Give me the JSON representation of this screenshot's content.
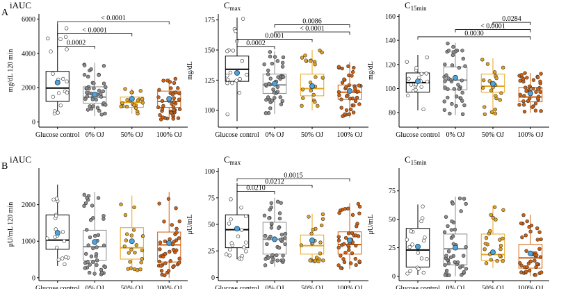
{
  "figure": {
    "row_labels": [
      "A",
      "B"
    ]
  },
  "colors": {
    "glucose": "#ffffff",
    "oj0": "#8c8c8c",
    "oj50": "#e8a21a",
    "oj100": "#d35f0c",
    "box_glucose": "#000000",
    "box_oj0": "#8c8c8c",
    "box_oj50": "#e8a21a",
    "box_oj100": "#d35f0c",
    "mean": "#4fa3d8"
  },
  "chart_data": [
    {
      "type": "box",
      "row": "A",
      "title": "iAUC",
      "title_sub": "",
      "ylabel": "mg/dL 120 min",
      "ylim": [
        -300,
        6300
      ],
      "yticks": [
        0,
        2000,
        4000,
        6000
      ],
      "categories": [
        "Glucose control",
        "0% OJ",
        "50% OJ",
        "100% OJ"
      ],
      "boxes": [
        {
          "q1": 1200,
          "median": 1980,
          "q3": 2950,
          "wlo": 450,
          "whi": 5700,
          "mean": 2300
        },
        {
          "q1": 1100,
          "median": 1450,
          "q3": 2050,
          "wlo": 350,
          "whi": 3450,
          "mean": 1600
        },
        {
          "q1": 850,
          "median": 1150,
          "q3": 1450,
          "wlo": 480,
          "whi": 1950,
          "mean": 1350
        },
        {
          "q1": 850,
          "median": 1200,
          "q3": 1800,
          "wlo": 150,
          "whi": 2550,
          "mean": 1350
        }
      ],
      "comparisons": [
        {
          "from": 0,
          "to": 1,
          "label": "0.0002",
          "y": 4420
        },
        {
          "from": 0,
          "to": 2,
          "label": "< 0.0001",
          "y": 5150
        },
        {
          "from": 0,
          "to": 3,
          "label": "< 0.0001",
          "y": 5850
        }
      ]
    },
    {
      "type": "box",
      "row": "A",
      "title": "C",
      "title_sub": "max",
      "ylabel": "mg/dL",
      "ylim": [
        86,
        180
      ],
      "yticks": [
        100,
        125,
        150,
        175
      ],
      "categories": [
        "Glucose control",
        "0% OJ",
        "50% OJ",
        "100% OJ"
      ],
      "boxes": [
        {
          "q1": 124,
          "median": 134,
          "q3": 145,
          "wlo": 91,
          "whi": 177,
          "mean": 131
        },
        {
          "q1": 114,
          "median": 121,
          "q3": 130,
          "wlo": 97,
          "whi": 149,
          "mean": 122
        },
        {
          "q1": 112,
          "median": 118,
          "q3": 130,
          "wlo": 100,
          "whi": 150,
          "mean": 120
        },
        {
          "q1": 109,
          "median": 115,
          "q3": 121,
          "wlo": 94,
          "whi": 140,
          "mean": 116
        }
      ],
      "comparisons": [
        {
          "from": 0,
          "to": 1,
          "label": "0.0002",
          "y": 153
        },
        {
          "from": 0,
          "to": 2,
          "label": "0.0001",
          "y": 159
        },
        {
          "from": 1,
          "to": 3,
          "label": "< 0.0001",
          "y": 165
        },
        {
          "from": 1,
          "to": 3,
          "label": "0.0086",
          "y": 171
        }
      ]
    },
    {
      "type": "box",
      "row": "A",
      "title": "C",
      "title_sub": "15min",
      "ylabel": "mg/dL",
      "ylim": [
        68,
        162
      ],
      "yticks": [
        80,
        100,
        120,
        140,
        160
      ],
      "categories": [
        "Glucose control",
        "0% OJ",
        "50% OJ",
        "100% OJ"
      ],
      "boxes": [
        {
          "q1": 97,
          "median": 105,
          "q3": 113,
          "wlo": 82,
          "whi": 128,
          "mean": 106
        },
        {
          "q1": 99,
          "median": 107,
          "q3": 118,
          "wlo": 78,
          "whi": 138,
          "mean": 109
        },
        {
          "q1": 97,
          "median": 102,
          "q3": 112,
          "wlo": 78,
          "whi": 125,
          "mean": 104
        },
        {
          "q1": 89,
          "median": 93,
          "q3": 101,
          "wlo": 80,
          "whi": 113,
          "mean": 96
        }
      ],
      "comparisons": [
        {
          "from": 0,
          "to": 3,
          "label": "0.0030",
          "y": 143
        },
        {
          "from": 1,
          "to": 3,
          "label": "< 0.0001",
          "y": 149
        },
        {
          "from": 2,
          "to": 3,
          "label": "0.0284",
          "y": 155
        }
      ]
    },
    {
      "type": "box",
      "row": "B",
      "title": "iAUC",
      "title_sub": "",
      "ylabel": "μU/mL 120 min",
      "ylim": [
        -80,
        3000
      ],
      "yticks": [
        0,
        1000,
        2000
      ],
      "categories": [
        "Glucose control",
        "0% OJ",
        "50% OJ",
        "100% OJ"
      ],
      "boxes": [
        {
          "q1": 780,
          "median": 1030,
          "q3": 1720,
          "wlo": 320,
          "whi": 2550,
          "mean": 1230
        },
        {
          "q1": 480,
          "median": 850,
          "q3": 1300,
          "wlo": 50,
          "whi": 2350,
          "mean": 980
        },
        {
          "q1": 510,
          "median": 820,
          "q3": 1370,
          "wlo": 200,
          "whi": 2250,
          "mean": 1000
        },
        {
          "q1": 430,
          "median": 900,
          "q3": 1250,
          "wlo": 0,
          "whi": 2350,
          "mean": 950
        }
      ],
      "comparisons": []
    },
    {
      "type": "box",
      "row": "B",
      "title": "C",
      "title_sub": "max",
      "ylabel": "μU/mL",
      "ylim": [
        -3,
        103
      ],
      "yticks": [
        0,
        25,
        50,
        75,
        100
      ],
      "categories": [
        "Glucose control",
        "0% OJ",
        "50% OJ",
        "100% OJ"
      ],
      "boxes": [
        {
          "q1": 28,
          "median": 45,
          "q3": 59,
          "wlo": 17,
          "whi": 89,
          "mean": 46
        },
        {
          "q1": 22,
          "median": 36,
          "q3": 52,
          "wlo": 10,
          "whi": 75,
          "mean": 36
        },
        {
          "q1": 22,
          "median": 30,
          "q3": 40,
          "wlo": 15,
          "whi": 60,
          "mean": 35
        },
        {
          "q1": 22,
          "median": 31,
          "q3": 43,
          "wlo": 8,
          "whi": 70,
          "mean": 35
        }
      ],
      "comparisons": [
        {
          "from": 0,
          "to": 1,
          "label": "0.0210",
          "y": 81
        },
        {
          "from": 0,
          "to": 2,
          "label": "0.0212",
          "y": 87
        },
        {
          "from": 0,
          "to": 3,
          "label": "0.0015",
          "y": 93
        }
      ]
    },
    {
      "type": "box",
      "row": "B",
      "title": "C",
      "title_sub": "15min",
      "ylabel": "μU/mL",
      "ylim": [
        -4,
        95
      ],
      "yticks": [
        0,
        25,
        50,
        75
      ],
      "categories": [
        "Glucose control",
        "0% OJ",
        "50% OJ",
        "100% OJ"
      ],
      "boxes": [
        {
          "q1": 8,
          "median": 23,
          "q3": 42,
          "wlo": 1,
          "whi": 63,
          "mean": 26
        },
        {
          "q1": 10,
          "median": 24,
          "q3": 37,
          "wlo": 0,
          "whi": 70,
          "mean": 25
        },
        {
          "q1": 14,
          "median": 19,
          "q3": 37,
          "wlo": 7,
          "whi": 62,
          "mean": 21
        },
        {
          "q1": 7,
          "median": 16,
          "q3": 28,
          "wlo": 0,
          "whi": 54,
          "mean": 20
        }
      ],
      "comparisons": []
    }
  ]
}
